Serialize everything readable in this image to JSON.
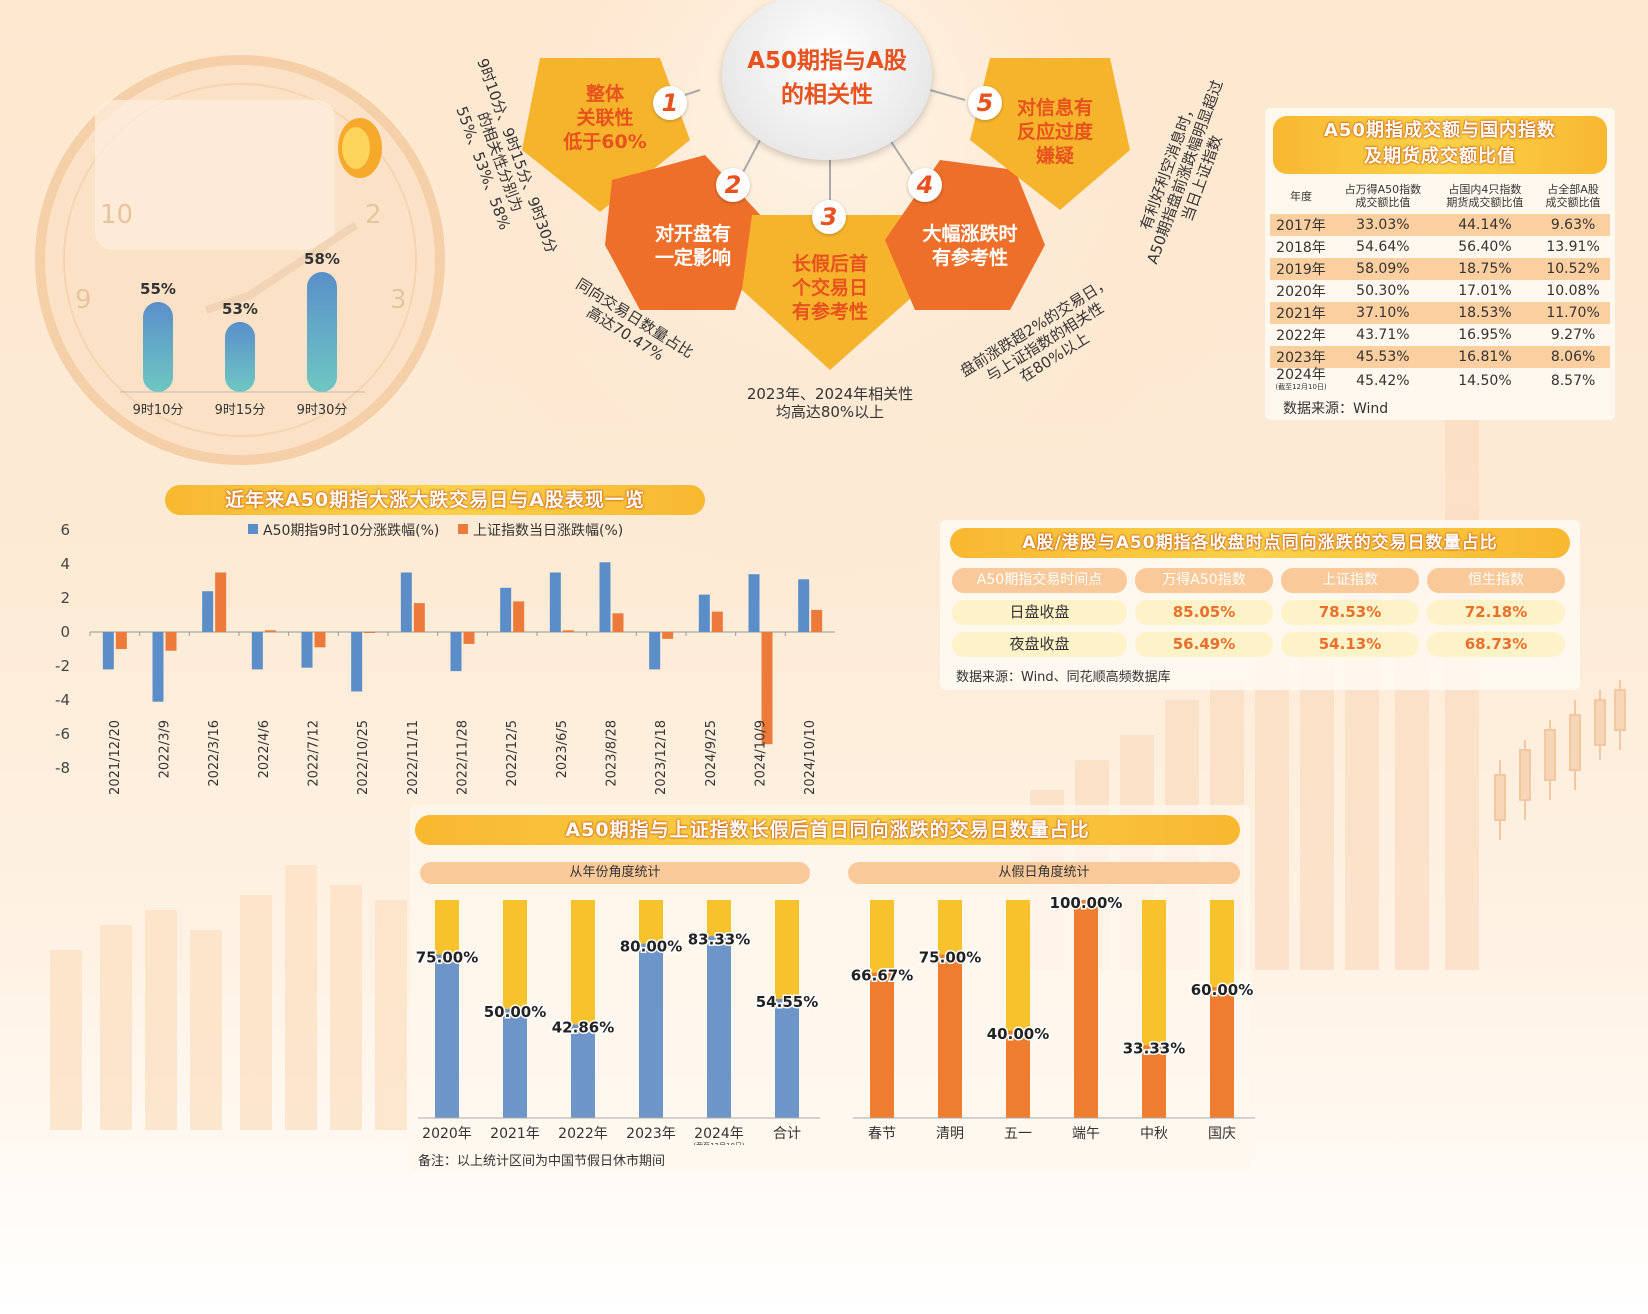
{
  "center": {
    "title_line1": "A50期指与A股",
    "title_line2": "的相关性"
  },
  "factors": [
    {
      "num": "1",
      "lines": [
        "整体",
        "关联性",
        "低于60%"
      ]
    },
    {
      "num": "2",
      "lines": [
        "对开盘有",
        "一定影响"
      ]
    },
    {
      "num": "3",
      "lines": [
        "长假后首",
        "个交易日",
        "有参考性"
      ]
    },
    {
      "num": "4",
      "lines": [
        "大幅涨跌时",
        "有参考性"
      ]
    },
    {
      "num": "5",
      "lines": [
        "对信息有",
        "反应过度",
        "嫌疑"
      ]
    }
  ],
  "notes": {
    "n1": [
      "9时10分、9时15分、9时30分",
      "的相关性分别为",
      "55%、53%、58%"
    ],
    "n2": [
      "同向交易日数量占比",
      "高达70.47%"
    ],
    "n3": [
      "2023年、2024年相关性",
      "均高达80%以上"
    ],
    "n4": [
      "盘前涨跌超2%的交易日，",
      "与上证指数的相关性",
      "在80%以上"
    ],
    "n5": [
      "有利好利空消息时，",
      "A50期指盘前涨跌幅明显超过",
      "当日上证指数"
    ]
  },
  "clock": {
    "numbers": [
      "10",
      "2",
      "9",
      "3"
    ]
  },
  "corr_chart": {
    "type": "bar",
    "categories": [
      "9时10分",
      "9时15分",
      "9时30分"
    ],
    "values": [
      55,
      53,
      58
    ],
    "labels": [
      "55%",
      "53%",
      "58%"
    ]
  },
  "ratio_table": {
    "title_line1": "A50期指成交额与国内指数",
    "title_line2": "及期货成交额比值",
    "headers": [
      [
        "年度"
      ],
      [
        "占万得A50指数",
        "成交额比值"
      ],
      [
        "占国内4只指数",
        "期货成交额比值"
      ],
      [
        "占全部A股",
        "成交额比值"
      ]
    ],
    "rows": [
      {
        "year": "2017年",
        "note": "",
        "c1": "33.03%",
        "c2": "44.14%",
        "c3": "9.63%"
      },
      {
        "year": "2018年",
        "note": "",
        "c1": "54.64%",
        "c2": "56.40%",
        "c3": "13.91%"
      },
      {
        "year": "2019年",
        "note": "",
        "c1": "58.09%",
        "c2": "18.75%",
        "c3": "10.52%"
      },
      {
        "year": "2020年",
        "note": "",
        "c1": "50.30%",
        "c2": "17.01%",
        "c3": "10.08%"
      },
      {
        "year": "2021年",
        "note": "",
        "c1": "37.10%",
        "c2": "18.53%",
        "c3": "11.70%"
      },
      {
        "year": "2022年",
        "note": "",
        "c1": "43.71%",
        "c2": "16.95%",
        "c3": "9.27%"
      },
      {
        "year": "2023年",
        "note": "",
        "c1": "45.53%",
        "c2": "16.81%",
        "c3": "8.06%"
      },
      {
        "year": "2024年",
        "note": "(截至12月10日)",
        "c1": "45.42%",
        "c2": "14.50%",
        "c3": "8.57%"
      }
    ],
    "source": "数据来源：Wind"
  },
  "swing_chart": {
    "type": "bar",
    "title": "近年来A50期指大涨大跌交易日与A股表现一览",
    "categories": [
      "2021/12/20",
      "2022/3/9",
      "2022/3/16",
      "2022/4/6",
      "2022/7/12",
      "2022/10/25",
      "2022/11/11",
      "2022/11/28",
      "2022/12/5",
      "2023/6/5",
      "2023/8/28",
      "2023/12/18",
      "2024/9/25",
      "2024/10/9",
      "2024/10/10"
    ],
    "series": [
      {
        "name": "A50期指9时10分涨跌幅(%)",
        "color": "#5b8ec9",
        "values": [
          -2.2,
          -4.1,
          2.4,
          -2.2,
          -2.1,
          -3.5,
          3.5,
          -2.3,
          2.6,
          3.5,
          4.1,
          -2.2,
          2.2,
          3.4,
          3.1
        ]
      },
      {
        "name": "上证指数当日涨跌幅(%)",
        "color": "#ec7a3a",
        "values": [
          -1.0,
          -1.1,
          3.5,
          0.1,
          -0.9,
          0.0,
          1.7,
          -0.7,
          1.8,
          0.1,
          1.1,
          -0.4,
          1.2,
          -6.6,
          1.3
        ]
      }
    ],
    "yticks": [
      "6",
      "4",
      "2",
      "0",
      "-2",
      "-4",
      "-6",
      "-8"
    ],
    "ylim": [
      -8,
      6
    ]
  },
  "sync_table": {
    "title": "A股/港股与A50期指各收盘时点同向涨跌的交易日数量占比",
    "headers": [
      "A50期指交易时间点",
      "万得A50指数",
      "上证指数",
      "恒生指数"
    ],
    "rows": [
      {
        "label": "日盘收盘",
        "v1": "85.05%",
        "v2": "78.53%",
        "v3": "72.18%"
      },
      {
        "label": "夜盘收盘",
        "v1": "56.49%",
        "v2": "54.13%",
        "v3": "68.73%"
      }
    ],
    "source": "数据来源：Wind、同花顺高频数据库"
  },
  "holiday_section": {
    "title": "A50期指与上证指数长假后首日同向涨跌的交易日数量占比",
    "note": "备注：以上统计区间为中国节假日休市期间"
  },
  "year_chart": {
    "type": "bar",
    "subtitle": "从年份角度统计",
    "categories": [
      "2020年",
      "2021年",
      "2022年",
      "2023年",
      "2024年",
      "合计"
    ],
    "category_notes": [
      "",
      "",
      "",
      "",
      "(截至12月10日)",
      ""
    ],
    "values": [
      75.0,
      50.0,
      42.86,
      80.0,
      83.33,
      54.55
    ],
    "labels": [
      "75.00%",
      "50.00%",
      "42.86%",
      "80.00%",
      "83.33%",
      "54.55%"
    ],
    "fill_color": "#6d95c8",
    "track_color": "#f8c22d"
  },
  "holiday_chart": {
    "type": "bar",
    "subtitle": "从假日角度统计",
    "categories": [
      "春节",
      "清明",
      "五一",
      "端午",
      "中秋",
      "国庆"
    ],
    "values": [
      66.67,
      75.0,
      40.0,
      100.0,
      33.33,
      60.0
    ],
    "labels": [
      "66.67%",
      "75.00%",
      "40.00%",
      "100.00%",
      "33.33%",
      "60.00%"
    ],
    "fill_color": "#ee7d2f",
    "track_color": "#f8c22d"
  }
}
